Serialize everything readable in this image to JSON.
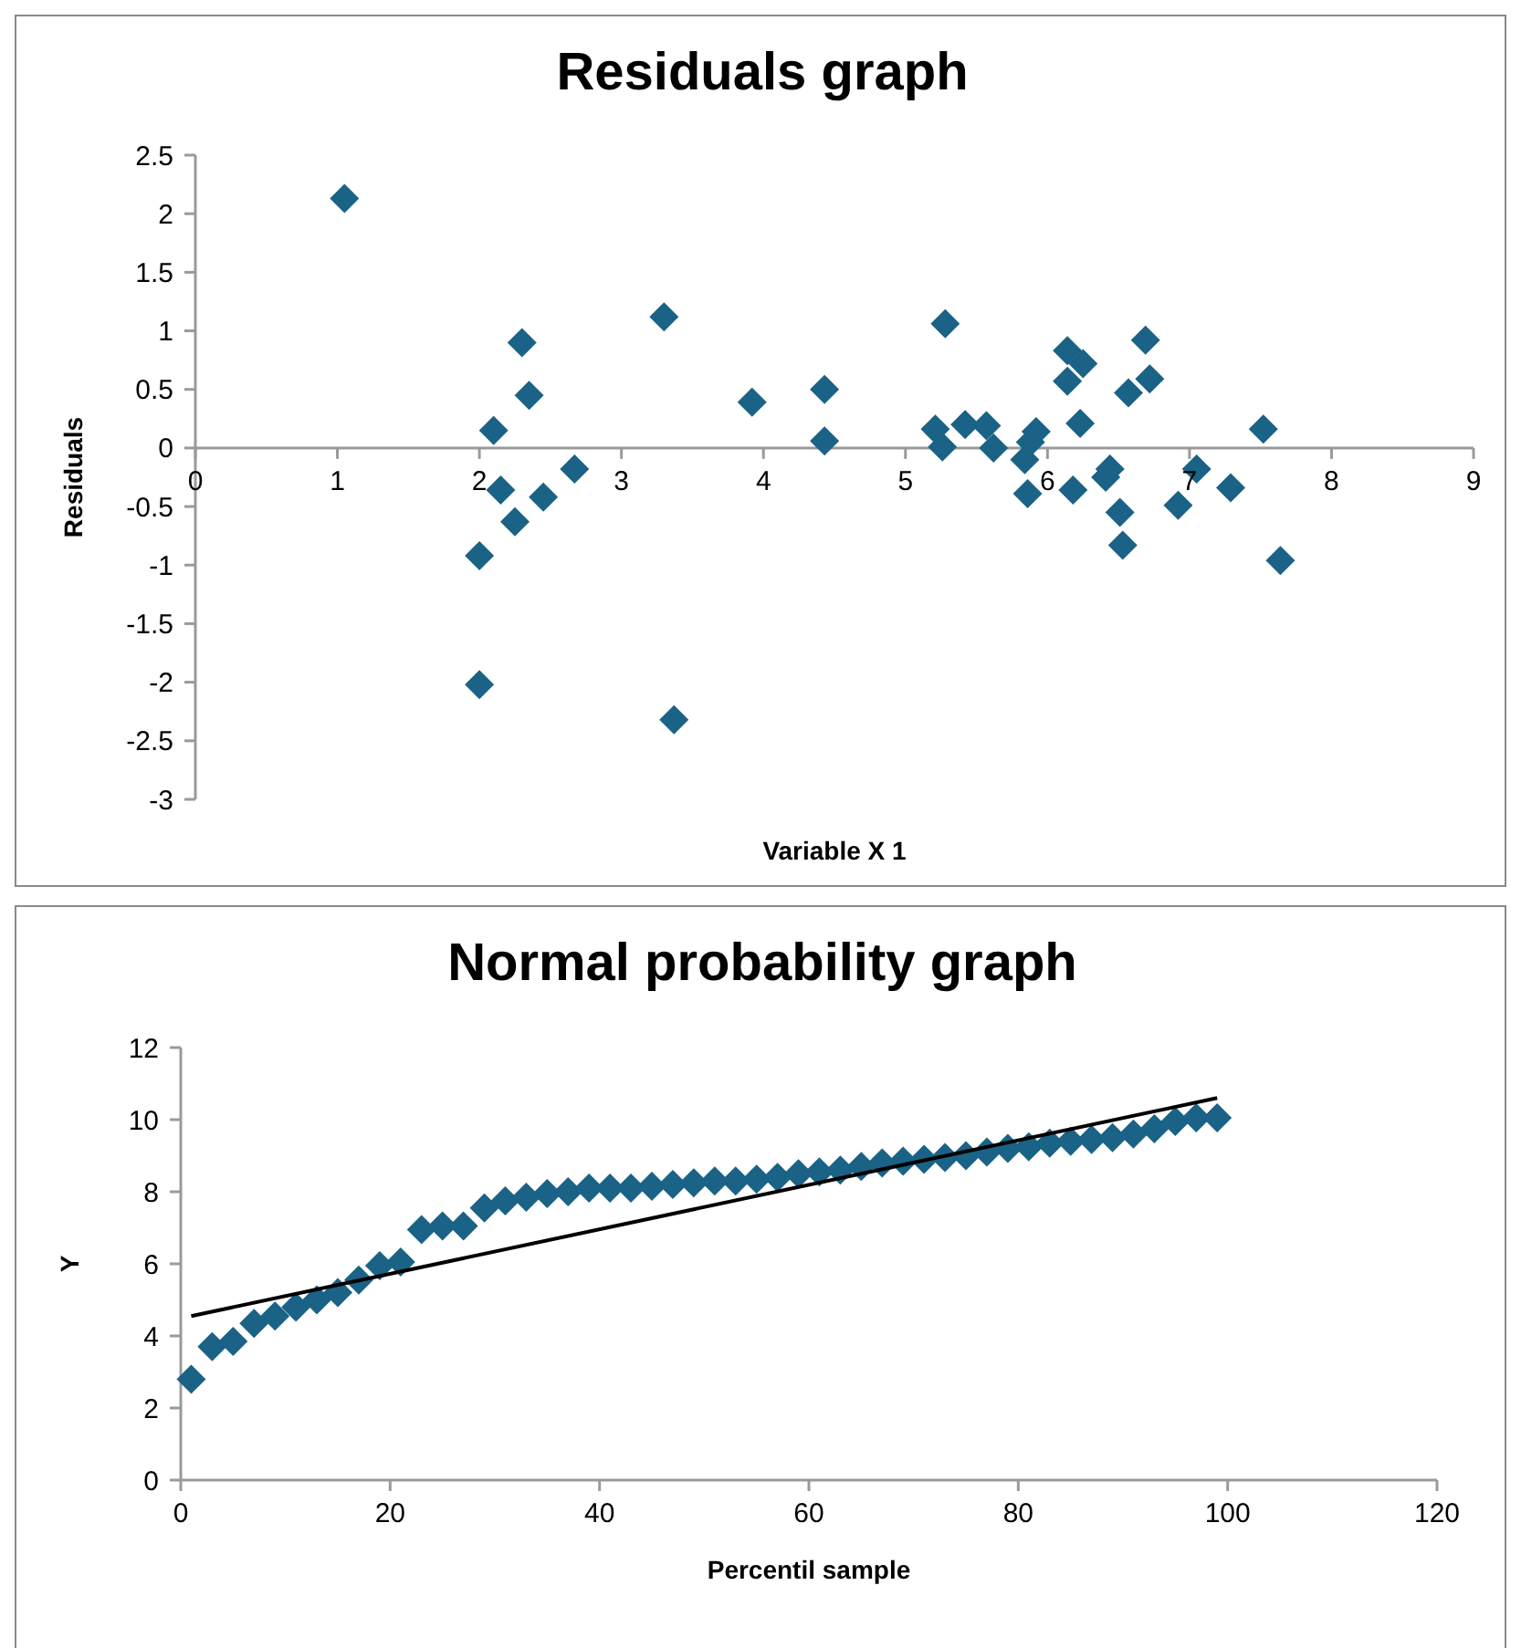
{
  "chart_data": [
    {
      "type": "scatter",
      "title": "Residuals graph",
      "xlabel": "Variable X 1",
      "ylabel": "Residuals",
      "marker": "diamond",
      "xlim": [
        0,
        9
      ],
      "xticks": [
        0,
        1,
        2,
        3,
        4,
        5,
        6,
        7,
        8,
        9
      ],
      "ylim": [
        -3,
        2.5
      ],
      "yticks": [
        -3,
        -2.5,
        -2,
        -1.5,
        -1,
        -0.5,
        0,
        0.5,
        1,
        1.5,
        2,
        2.5
      ],
      "series": [
        {
          "color": "#1a6286",
          "x": [
            1.05,
            2.1,
            2.0,
            2.0,
            2.15,
            2.25,
            2.3,
            2.35,
            2.45,
            2.67,
            3.3,
            3.37,
            3.92,
            4.43,
            4.43,
            5.28,
            5.21,
            5.26,
            5.42,
            5.57,
            5.62,
            5.92,
            5.84,
            5.86,
            5.88,
            6.14,
            6.25,
            6.14,
            6.23,
            6.18,
            6.44,
            6.41,
            6.51,
            6.53,
            6.57,
            6.72,
            6.69,
            7.05,
            6.92,
            7.29,
            7.52,
            7.64
          ],
          "values": [
            2.13,
            0.15,
            -0.92,
            -2.02,
            -0.36,
            -0.63,
            0.9,
            0.45,
            -0.42,
            -0.18,
            1.12,
            -2.32,
            0.39,
            0.5,
            0.06,
            1.06,
            0.16,
            0.01,
            0.2,
            0.19,
            0.0,
            0.14,
            -0.1,
            -0.39,
            0.05,
            0.83,
            0.72,
            0.57,
            0.21,
            -0.36,
            -0.18,
            -0.25,
            -0.55,
            -0.83,
            0.47,
            0.59,
            0.92,
            -0.18,
            -0.49,
            -0.34,
            0.16,
            -0.96
          ]
        }
      ]
    },
    {
      "type": "scatter",
      "title": "Normal probability graph",
      "xlabel": "Percentil sample",
      "ylabel": "Y",
      "marker": "diamond",
      "xlim": [
        0,
        120
      ],
      "xticks": [
        0,
        20,
        40,
        60,
        80,
        100,
        120
      ],
      "ylim": [
        0,
        12
      ],
      "yticks": [
        0,
        2,
        4,
        6,
        8,
        10,
        12
      ],
      "series": [
        {
          "color": "#1a6286",
          "x": [
            1,
            3,
            5,
            7,
            9,
            11,
            13,
            15,
            17,
            19,
            21,
            23,
            25,
            27,
            29,
            31,
            33,
            35,
            37,
            39,
            41,
            43,
            45,
            47,
            49,
            51,
            53,
            55,
            57,
            59,
            61,
            63,
            65,
            67,
            69,
            71,
            73,
            75,
            77,
            79,
            81,
            83,
            85,
            87,
            89,
            91,
            93,
            95,
            97,
            99
          ],
          "values": [
            2.8,
            3.7,
            3.85,
            4.35,
            4.55,
            4.8,
            5.0,
            5.2,
            5.55,
            5.95,
            6.05,
            6.95,
            7.05,
            7.05,
            7.55,
            7.75,
            7.85,
            7.95,
            8.0,
            8.1,
            8.1,
            8.1,
            8.15,
            8.2,
            8.25,
            8.3,
            8.3,
            8.35,
            8.4,
            8.5,
            8.55,
            8.6,
            8.7,
            8.8,
            8.85,
            8.9,
            8.95,
            9.0,
            9.1,
            9.2,
            9.25,
            9.35,
            9.4,
            9.45,
            9.5,
            9.6,
            9.75,
            9.95,
            10.05,
            10.05
          ]
        },
        {
          "type": "line",
          "marker": "none",
          "color": "#000000",
          "x": [
            1,
            99
          ],
          "values": [
            4.55,
            10.6
          ]
        }
      ]
    }
  ]
}
